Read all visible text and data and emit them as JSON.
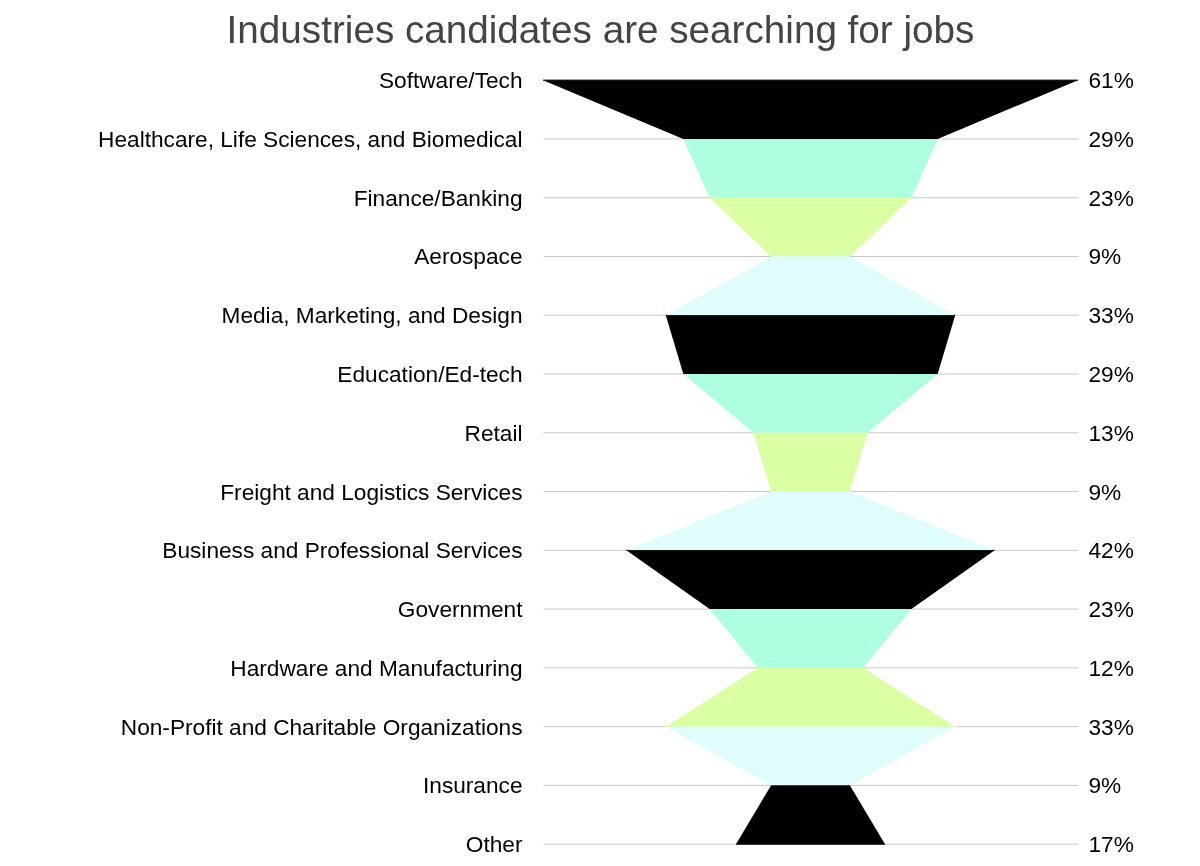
{
  "chart_data": {
    "type": "other",
    "title": "Industries candidates are searching for jobs",
    "categories": [
      "Software/Tech",
      "Healthcare, Life Sciences, and Biomedical",
      "Finance/Banking",
      "Aerospace",
      "Media, Marketing, and Design",
      "Education/Ed-tech",
      "Retail",
      "Freight and Logistics Services",
      "Business and Professional Services",
      "Government",
      "Hardware and Manufacturing",
      "Non-Profit and Charitable Organizations",
      "Insurance",
      "Other"
    ],
    "values": [
      61,
      29,
      23,
      9,
      33,
      29,
      13,
      9,
      42,
      23,
      12,
      33,
      9,
      17
    ],
    "value_labels": [
      "61%",
      "29%",
      "23%",
      "9%",
      "33%",
      "29%",
      "13%",
      "9%",
      "42%",
      "23%",
      "12%",
      "33%",
      "9%",
      "17%"
    ],
    "colors": [
      "#000000",
      "#adffdf",
      "#dbffa3",
      "#e0fdfd",
      "#000000",
      "#adffdf",
      "#dbffa3",
      "#e0fdfd",
      "#000000",
      "#adffdf",
      "#dbffa3",
      "#e0fdfd",
      "#000000",
      "#000000"
    ]
  }
}
